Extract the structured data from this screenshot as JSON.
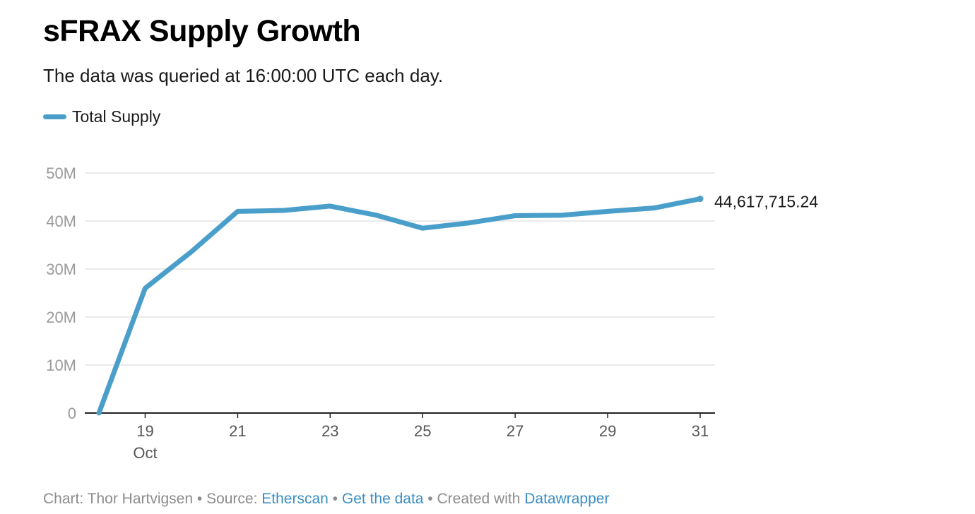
{
  "title": "sFRAX Supply Growth",
  "subtitle": "The data was queried at 16:00:00 UTC each day.",
  "legend": {
    "label": "Total Supply",
    "color": "#4a9fca"
  },
  "end_label": "44,617,715.24",
  "footer": {
    "chart_prefix": "Chart: Thor Hartvigsen",
    "sep1": " • ",
    "source_prefix": "Source: ",
    "source_link": "Etherscan",
    "sep2": " • ",
    "get_data": "Get the data",
    "sep3": " • ",
    "created_prefix": "Created with ",
    "created_link": "Datawrapper"
  },
  "chart_data": {
    "type": "line",
    "title": "sFRAX Supply Growth",
    "subtitle": "The data was queried at 16:00:00 UTC each day.",
    "x_unit": "day of October",
    "x": [
      18,
      19,
      20,
      21,
      22,
      23,
      24,
      25,
      26,
      27,
      28,
      29,
      30,
      31
    ],
    "xlim": [
      18,
      31
    ],
    "x_ticks": [
      19,
      21,
      23,
      25,
      27,
      29,
      31
    ],
    "x_tick_labels": [
      "19",
      "21",
      "23",
      "25",
      "27",
      "29",
      "31"
    ],
    "x_month_label": "Oct",
    "ylim": [
      0,
      50000000
    ],
    "y_ticks": [
      0,
      10000000,
      20000000,
      30000000,
      40000000,
      50000000
    ],
    "y_tick_labels": [
      "0",
      "10M",
      "20M",
      "30M",
      "40M",
      "50M"
    ],
    "grid": true,
    "legend_position": "top-left",
    "series": [
      {
        "name": "Total Supply",
        "color": "#4a9fca",
        "values": [
          0,
          26000000,
          33600000,
          42000000,
          42200000,
          43100000,
          41200000,
          38500000,
          39600000,
          41100000,
          41200000,
          42000000,
          42700000,
          44617715.24
        ]
      }
    ]
  }
}
